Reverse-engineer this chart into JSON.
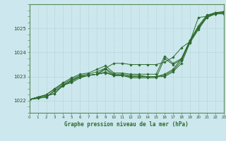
{
  "title": "Graphe pression niveau de la mer (hPa)",
  "xlim": [
    0,
    23
  ],
  "ylim": [
    1021.5,
    1026.0
  ],
  "yticks": [
    1022,
    1023,
    1024,
    1025
  ],
  "xticks": [
    0,
    1,
    2,
    3,
    4,
    5,
    6,
    7,
    8,
    9,
    10,
    11,
    12,
    13,
    14,
    15,
    16,
    17,
    18,
    19,
    20,
    21,
    22,
    23
  ],
  "bg_color": "#cce8ee",
  "line_color": "#2d6a2d",
  "series": [
    [
      1022.05,
      1022.15,
      1022.2,
      1022.3,
      1022.65,
      1022.75,
      1022.95,
      1023.05,
      1023.1,
      1023.15,
      1023.05,
      1023.05,
      1023.0,
      1023.0,
      1023.0,
      1023.0,
      1023.0,
      1023.2,
      1023.55,
      1024.4,
      1024.95,
      1025.45,
      1025.6,
      1025.65
    ],
    [
      1022.05,
      1022.15,
      1022.2,
      1022.3,
      1022.65,
      1022.8,
      1023.0,
      1023.05,
      1023.1,
      1023.2,
      1023.05,
      1023.05,
      1023.0,
      1023.0,
      1023.0,
      1023.0,
      1023.05,
      1023.25,
      1023.65,
      1024.45,
      1025.0,
      1025.5,
      1025.6,
      1025.65
    ],
    [
      1022.05,
      1022.15,
      1022.25,
      1022.5,
      1022.7,
      1022.9,
      1023.05,
      1023.1,
      1023.2,
      1023.35,
      1023.1,
      1023.1,
      1023.05,
      1023.05,
      1023.0,
      1023.0,
      1023.1,
      1023.3,
      1023.75,
      1024.5,
      1025.05,
      1025.5,
      1025.65,
      1025.65
    ],
    [
      1022.05,
      1022.15,
      1022.25,
      1022.5,
      1022.75,
      1022.95,
      1023.1,
      1023.15,
      1023.3,
      1023.45,
      1023.15,
      1023.15,
      1023.1,
      1023.1,
      1023.1,
      1023.1,
      1023.85,
      1023.55,
      1023.75,
      1024.5,
      1025.1,
      1025.55,
      1025.65,
      1025.7
    ],
    [
      1022.05,
      1022.1,
      1022.15,
      1022.45,
      1022.65,
      1022.85,
      1023.0,
      1023.05,
      1023.1,
      1023.3,
      1023.05,
      1023.05,
      1022.95,
      1022.95,
      1022.95,
      1022.95,
      1023.75,
      1023.5,
      1023.7,
      1024.45,
      1025.05,
      1025.45,
      1025.6,
      1025.6
    ]
  ],
  "series_high": [
    1022.05,
    1022.1,
    1022.15,
    1022.4,
    1022.6,
    1022.85,
    1023.0,
    1023.05,
    1023.1,
    1023.35,
    1023.55,
    1023.55,
    1023.5,
    1023.5,
    1023.5,
    1023.5,
    1023.6,
    1023.8,
    1024.2,
    1024.45,
    1025.45,
    1025.5,
    1025.65,
    1025.65
  ]
}
